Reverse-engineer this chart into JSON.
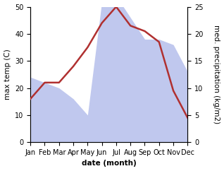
{
  "months": [
    "Jan",
    "Feb",
    "Mar",
    "Apr",
    "May",
    "Jun",
    "Jul",
    "Aug",
    "Sep",
    "Oct",
    "Nov",
    "Dec"
  ],
  "month_indices": [
    0,
    1,
    2,
    3,
    4,
    5,
    6,
    7,
    8,
    9,
    10,
    11
  ],
  "temperature": [
    16,
    22,
    22,
    28,
    35,
    44,
    50,
    43,
    41,
    37,
    19,
    9
  ],
  "precipitation": [
    12,
    11,
    10,
    8,
    5,
    26,
    27,
    23,
    19,
    19,
    18,
    13
  ],
  "temp_color": "#b03030",
  "precip_fill_color": "#c0c8ee",
  "temp_lw": 1.8,
  "xlim": [
    0,
    11
  ],
  "temp_ylim": [
    0,
    50
  ],
  "precip_ylim": [
    0,
    25
  ],
  "temp_yticks": [
    0,
    10,
    20,
    30,
    40,
    50
  ],
  "precip_yticks": [
    0,
    5,
    10,
    15,
    20,
    25
  ],
  "ylabel_left": "max temp (C)",
  "ylabel_right": "med. precipitation (kg/m2)",
  "xlabel": "date (month)",
  "background_color": "#ffffff",
  "label_fontsize": 7.5,
  "tick_fontsize": 7,
  "scale_factor": 2.0
}
